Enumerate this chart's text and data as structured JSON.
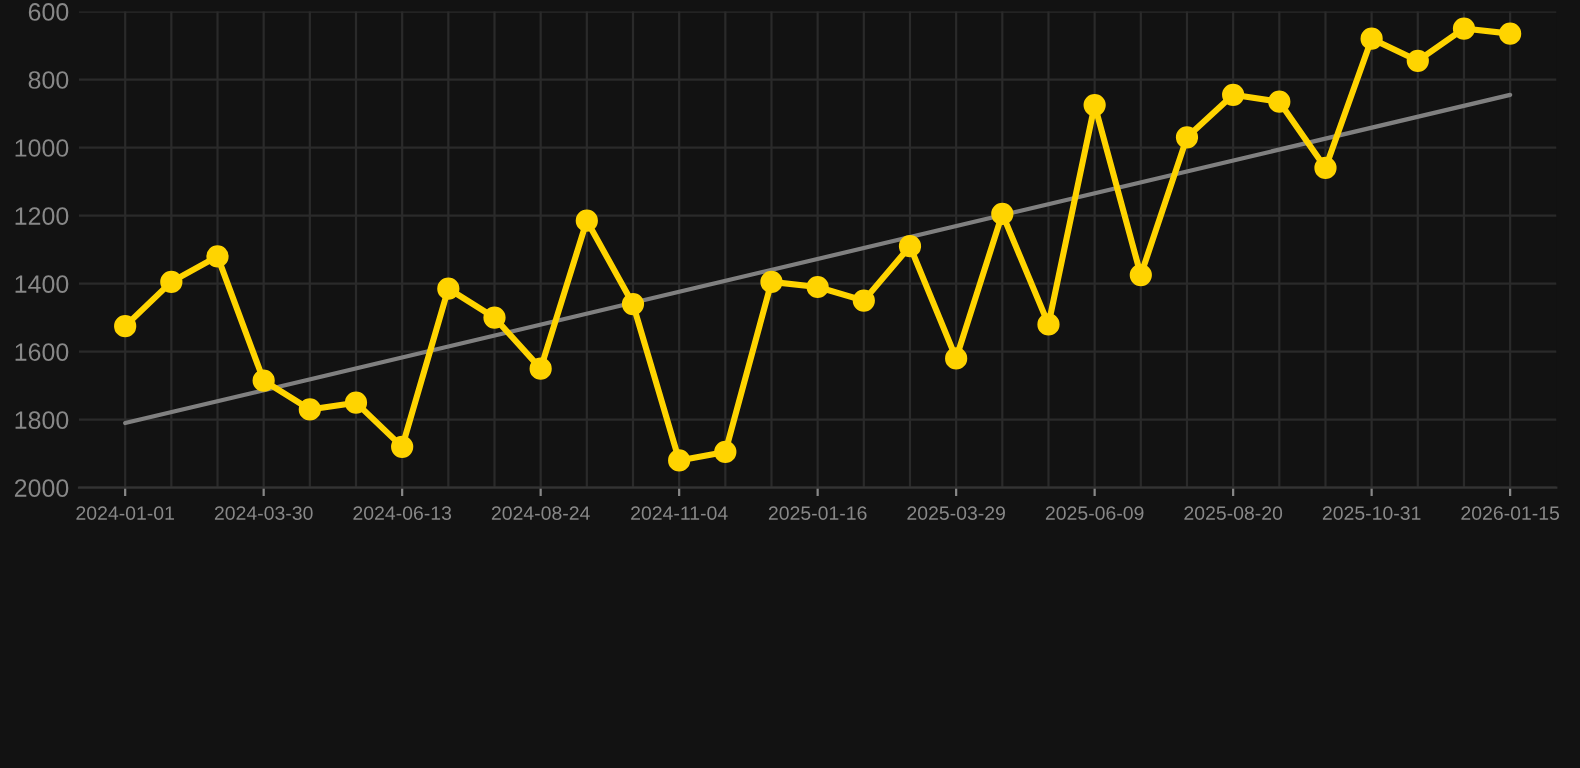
{
  "chart_data": {
    "type": "line",
    "categories": [
      "2024-01-01",
      null,
      null,
      "2024-03-30",
      null,
      null,
      "2024-06-13",
      null,
      null,
      "2024-08-24",
      null,
      null,
      "2024-11-04",
      null,
      null,
      "2025-01-16",
      null,
      null,
      "2025-03-29",
      null,
      null,
      "2025-06-09",
      null,
      null,
      "2025-08-20",
      null,
      null,
      "2025-10-31",
      null,
      null,
      "2026-01-15"
    ],
    "series": [
      {
        "color": "#ffd400",
        "marker": "circle",
        "values": [
          1525,
          1395,
          1320,
          1685,
          1770,
          1750,
          1880,
          1415,
          1500,
          1650,
          1215,
          1460,
          1920,
          1895,
          1395,
          1410,
          1450,
          1290,
          1620,
          1195,
          1520,
          875,
          1375,
          970,
          845,
          865,
          1060,
          680,
          745,
          650,
          665
        ]
      },
      {
        "type": "line",
        "color": "#808080",
        "marker": "none",
        "values": [
          1810,
          null,
          null,
          null,
          null,
          null,
          null,
          null,
          null,
          null,
          null,
          null,
          null,
          null,
          null,
          null,
          null,
          null,
          null,
          null,
          null,
          null,
          null,
          null,
          null,
          null,
          null,
          null,
          null,
          null,
          845
        ]
      }
    ],
    "ylim": [
      2000,
      600
    ],
    "yticks": [
      600,
      800,
      1000,
      1200,
      1400,
      1600,
      1800,
      2000
    ],
    "grid": true
  }
}
